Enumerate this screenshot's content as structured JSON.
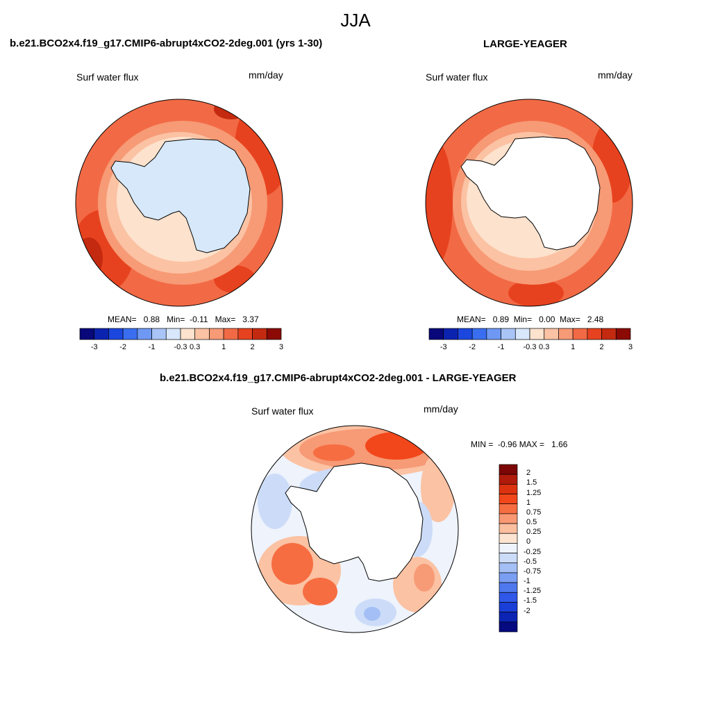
{
  "figure": {
    "season": "JJA"
  },
  "panels": [
    {
      "title": "b.e21.BCO2x4.f19_g17.CMIP6-abrupt4xCO2-2deg.001 (yrs 1-30)",
      "variable": "Surf water flux",
      "units": "mm/day",
      "stats": {
        "mean_label": "MEAN=",
        "mean": "0.88",
        "min_label": "Min=",
        "min": "-0.11",
        "max_label": "Max=",
        "max": "3.37"
      },
      "land_color": "#d6e8fa"
    },
    {
      "title": "LARGE-YEAGER",
      "variable": "Surf water flux",
      "units": "mm/day",
      "stats": {
        "mean_label": "MEAN=",
        "mean": "0.89",
        "min_label": "Min=",
        "min": "0.00",
        "max_label": "Max=",
        "max": "2.48"
      },
      "land_color": "#ffffff"
    },
    {
      "title": "b.e21.BCO2x4.f19_g17.CMIP6-abrupt4xCO2-2deg.001 - LARGE-YEAGER",
      "variable": "Surf water flux",
      "units": "mm/day",
      "stats": {
        "min_label": "MIN =",
        "min": "-0.96",
        "max_label": "MAX =",
        "max": "1.66"
      },
      "land_color": "#ffffff"
    }
  ],
  "colorbar_abs": {
    "colors": [
      "#08087a",
      "#0c23b0",
      "#1c47de",
      "#3a6ef0",
      "#6e98f4",
      "#a9c4f7",
      "#d8e7fb",
      "#fde2cd",
      "#fbc2a3",
      "#f79a76",
      "#f26a45",
      "#e7421f",
      "#c42a10",
      "#8b0a05"
    ],
    "tick_labels": [
      "-3",
      "-2",
      "-1",
      "-0.3",
      "0.3",
      "1",
      "2",
      "3"
    ]
  },
  "colorbar_diff": {
    "colors": [
      "#7d0606",
      "#b01b0b",
      "#dc320f",
      "#f2471b",
      "#f76d42",
      "#f99873",
      "#fbbe9f",
      "#fde4d1",
      "#eef3fc",
      "#ccdcf8",
      "#a3bff5",
      "#7a9ef2",
      "#4e78ee",
      "#2f58e8",
      "#1a3fd8",
      "#0b24b4",
      "#050a80"
    ],
    "tick_labels": [
      "2",
      "1.5",
      "1.25",
      "1",
      "0.75",
      "0.5",
      "0.25",
      "0",
      "-0.25",
      "-0.5",
      "-0.75",
      "-1",
      "-1.25",
      "-1.5",
      "-2"
    ]
  },
  "colors": {
    "coast_line": "#000000",
    "ocean_high": "#f26a45",
    "ocean_mid": "#f79a76",
    "ocean_low": "#fbc2a3",
    "ocean_pale": "#fde2cd"
  }
}
